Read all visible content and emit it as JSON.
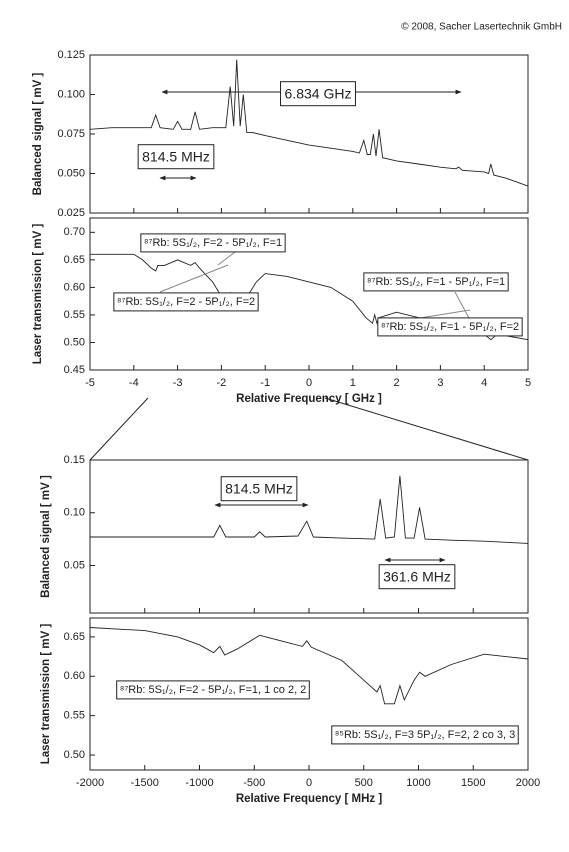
{
  "copyright": "© 2008, Sacher Lasertechnik GmbH",
  "chart_data": [
    {
      "type": "line",
      "ylabel": "Balanced signal [ mV ]",
      "color": "#222",
      "xlim": [
        -5,
        5
      ],
      "ylim": [
        0.025,
        0.125
      ],
      "yticks": [
        0.025,
        {
          "value": 0.05,
          "label": "0.050"
        },
        0.075,
        {
          "value": 0.1,
          "label": "0.100"
        },
        0.125
      ],
      "x": [
        -5,
        -4.5,
        -4,
        -3.6,
        -3.5,
        -3.4,
        -3.1,
        -3.0,
        -2.9,
        -2.7,
        -2.6,
        -2.5,
        -2.2,
        -1.9,
        -1.8,
        -1.72,
        -1.65,
        -1.57,
        -1.5,
        -1.42,
        -1.3,
        -1,
        -0.5,
        0,
        0.5,
        1,
        1.15,
        1.25,
        1.33,
        1.4,
        1.47,
        1.53,
        1.6,
        1.68,
        2,
        2.5,
        3,
        3.35,
        3.42,
        3.5,
        4,
        4.1,
        4.15,
        4.22,
        4.5,
        5
      ],
      "values": [
        0.078,
        0.079,
        0.079,
        0.079,
        0.087,
        0.079,
        0.078,
        0.083,
        0.078,
        0.078,
        0.089,
        0.078,
        0.079,
        0.079,
        0.105,
        0.08,
        0.122,
        0.08,
        0.1,
        0.076,
        0.076,
        0.074,
        0.071,
        0.068,
        0.066,
        0.064,
        0.063,
        0.071,
        0.062,
        0.062,
        0.075,
        0.061,
        0.078,
        0.06,
        0.058,
        0.056,
        0.054,
        0.053,
        0.054,
        0.052,
        0.051,
        0.05,
        0.056,
        0.049,
        0.047,
        0.042
      ],
      "annotations": [
        "6.834 GHz",
        "814.5 MHz"
      ]
    },
    {
      "type": "line",
      "ylabel": "Laser transmission [ mV ]",
      "xlabel": "Relative Frequency [ GHz ]",
      "color": "#222",
      "xlim": [
        -5,
        5
      ],
      "ylim": [
        0.45,
        0.726
      ],
      "xticks": [
        -5,
        -4,
        -3,
        -2,
        -1,
        0,
        1,
        2,
        3,
        4,
        5
      ],
      "yticks": [
        0.45,
        {
          "value": 0.5,
          "label": "0.50"
        },
        0.55,
        {
          "value": 0.6,
          "label": "0.60"
        },
        0.65,
        {
          "value": 0.7,
          "label": "0.70"
        }
      ],
      "x": [
        -5,
        -4.5,
        -4,
        -3.8,
        -3.6,
        -3.5,
        -3.45,
        -3.3,
        -3,
        -2.7,
        -2.6,
        -2.5,
        -2.2,
        -1.9,
        -1.8,
        -1.72,
        -1.65,
        -1.57,
        -1.5,
        -1.4,
        -1.2,
        -1,
        -0.5,
        0,
        0.5,
        1,
        1.3,
        1.45,
        1.5,
        1.55,
        1.6,
        1.8,
        2,
        2.5,
        3,
        3.5,
        4,
        4.15,
        4.3,
        5
      ],
      "values": [
        0.66,
        0.66,
        0.66,
        0.65,
        0.635,
        0.63,
        0.64,
        0.64,
        0.65,
        0.64,
        0.645,
        0.635,
        0.61,
        0.57,
        0.59,
        0.565,
        0.585,
        0.565,
        0.575,
        0.585,
        0.61,
        0.625,
        0.62,
        0.61,
        0.6,
        0.575,
        0.545,
        0.535,
        0.55,
        0.535,
        0.545,
        0.55,
        0.555,
        0.545,
        0.535,
        0.53,
        0.515,
        0.505,
        0.515,
        0.505
      ],
      "annotations": [
        "⁸⁷Rb: 5S₁/₂, F=2 - 5P₁/₂, F=1",
        "⁸⁷Rb: 5S₁/₂, F=2 - 5P₁/₂, F=2",
        "⁸⁷Rb: 5S₁/₂, F=1 - 5P₁/₂, F=1",
        "⁸⁷Rb: 5S₁/₂, F=1 - 5P₁/₂, F=2"
      ]
    },
    {
      "type": "line",
      "ylabel": "Balanced signal [ mV ]",
      "color": "#222",
      "xlim": [
        -2000,
        2000
      ],
      "ylim": [
        0.005,
        0.15
      ],
      "yticks": [
        0.05,
        {
          "value": 0.1,
          "label": "0.10"
        },
        0.15
      ],
      "x": [
        -2000,
        -1500,
        -1000,
        -870,
        -815,
        -760,
        -500,
        -450,
        -400,
        -100,
        -20,
        40,
        300,
        600,
        650,
        700,
        780,
        830,
        880,
        960,
        1010,
        1060,
        1300,
        1600,
        2000
      ],
      "values": [
        0.077,
        0.077,
        0.077,
        0.077,
        0.088,
        0.077,
        0.077,
        0.082,
        0.077,
        0.078,
        0.092,
        0.077,
        0.076,
        0.075,
        0.113,
        0.076,
        0.077,
        0.135,
        0.076,
        0.076,
        0.105,
        0.075,
        0.074,
        0.073,
        0.071
      ],
      "annotations": [
        "814.5 MHz",
        "361.6 MHz"
      ]
    },
    {
      "type": "line",
      "ylabel": "Laser transmission [ mV ]",
      "xlabel": "Relative Frequency [ MHz ]",
      "color": "#222",
      "xlim": [
        -2000,
        2000
      ],
      "ylim": [
        0.481,
        0.674
      ],
      "xticks": [
        -2000,
        -1500,
        -1000,
        -500,
        0,
        500,
        1000,
        1500,
        2000
      ],
      "yticks": [
        {
          "value": 0.5,
          "label": "0.50"
        },
        0.55,
        {
          "value": 0.6,
          "label": "0.60"
        },
        0.65
      ],
      "x": [
        -2000,
        -1500,
        -1200,
        -1000,
        -870,
        -815,
        -770,
        -650,
        -450,
        -200,
        -60,
        -20,
        20,
        300,
        500,
        620,
        650,
        690,
        780,
        830,
        870,
        960,
        1010,
        1060,
        1300,
        1600,
        2000
      ],
      "values": [
        0.662,
        0.658,
        0.65,
        0.64,
        0.63,
        0.638,
        0.627,
        0.635,
        0.652,
        0.643,
        0.638,
        0.645,
        0.637,
        0.62,
        0.595,
        0.58,
        0.588,
        0.565,
        0.565,
        0.588,
        0.57,
        0.595,
        0.605,
        0.6,
        0.615,
        0.628,
        0.622
      ],
      "annotations": [
        "⁸⁷Rb: 5S₁/₂, F=2 - 5P₁/₂, F=1, 1 co 2, 2",
        "⁸⁵Rb: 5S₁/₂, F=3   5P₁/₂, F=2, 2 co 3, 3"
      ]
    }
  ]
}
